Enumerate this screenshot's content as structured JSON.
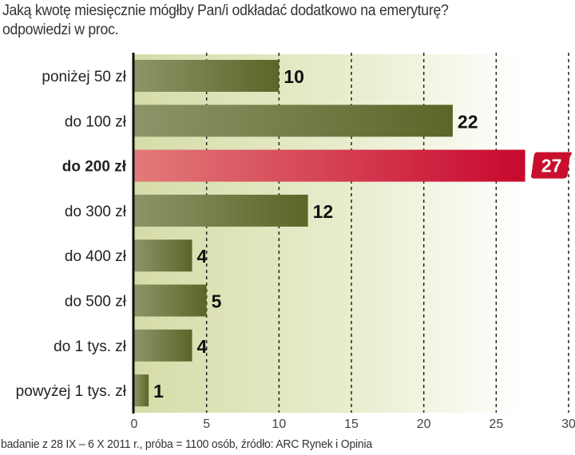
{
  "header": {
    "title": "Jaką kwotę miesięcznie mógłby Pan/i odkładać dodatkowo na emeryturę?",
    "subtitle": "odpowiedzi w proc."
  },
  "footer": {
    "source": "badanie z 28 IX – 6 X 2011 r., próba = 1100 osób, źródło: ARC Rynek i Opinia"
  },
  "colors": {
    "bar": "#5e692c",
    "bar_light": "#8d9468",
    "highlight": "#c8102e",
    "highlight_light": "#e07a7a",
    "background_left": "#d8ddac",
    "background_right": "#ffffff",
    "axis": "#111111"
  },
  "chart_data": {
    "type": "bar",
    "orientation": "horizontal",
    "title": "Jaką kwotę miesięcznie mógłby Pan/i odkładać dodatkowo na emeryturę?",
    "subtitle": "odpowiedzi w proc.",
    "xlabel": "",
    "ylabel": "",
    "categories": [
      "poniżej 50 zł",
      "do 100 zł",
      "do 200 zł",
      "do 300 zł",
      "do 400 zł",
      "do 500 zł",
      "do 1 tys. zł",
      "powyżej 1 tys. zł"
    ],
    "values": [
      10,
      22,
      27,
      12,
      4,
      5,
      4,
      1
    ],
    "highlight_index": 2,
    "xlim": [
      0,
      30
    ],
    "xticks": [
      0,
      5,
      10,
      15,
      20,
      25,
      30
    ],
    "grid": true,
    "grid_style": "dashed vertical",
    "legend": "none",
    "source": "badanie z 28 IX – 6 X 2011 r., próba = 1100 osób, źródło: ARC Rynek i Opinia"
  }
}
